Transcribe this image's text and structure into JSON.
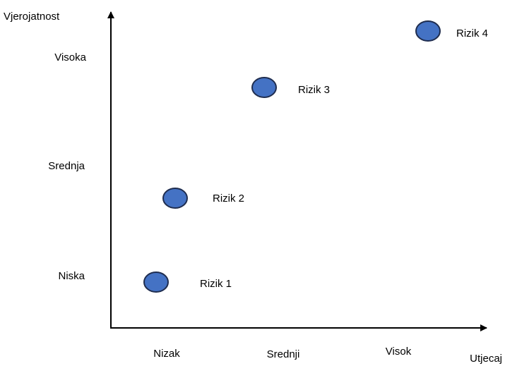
{
  "axes": {
    "y_label": "Vjerojatnost",
    "x_label": "Utjecaj",
    "y_levels": [
      "Visoka",
      "Srednja",
      "Niska"
    ],
    "x_levels": [
      "Nizak",
      "Srednji",
      "Visok"
    ]
  },
  "nodes": [
    {
      "label": "Rizik 1"
    },
    {
      "label": "Rizik 2"
    },
    {
      "label": "Rizik 3"
    },
    {
      "label": "Rizik 4"
    }
  ]
}
